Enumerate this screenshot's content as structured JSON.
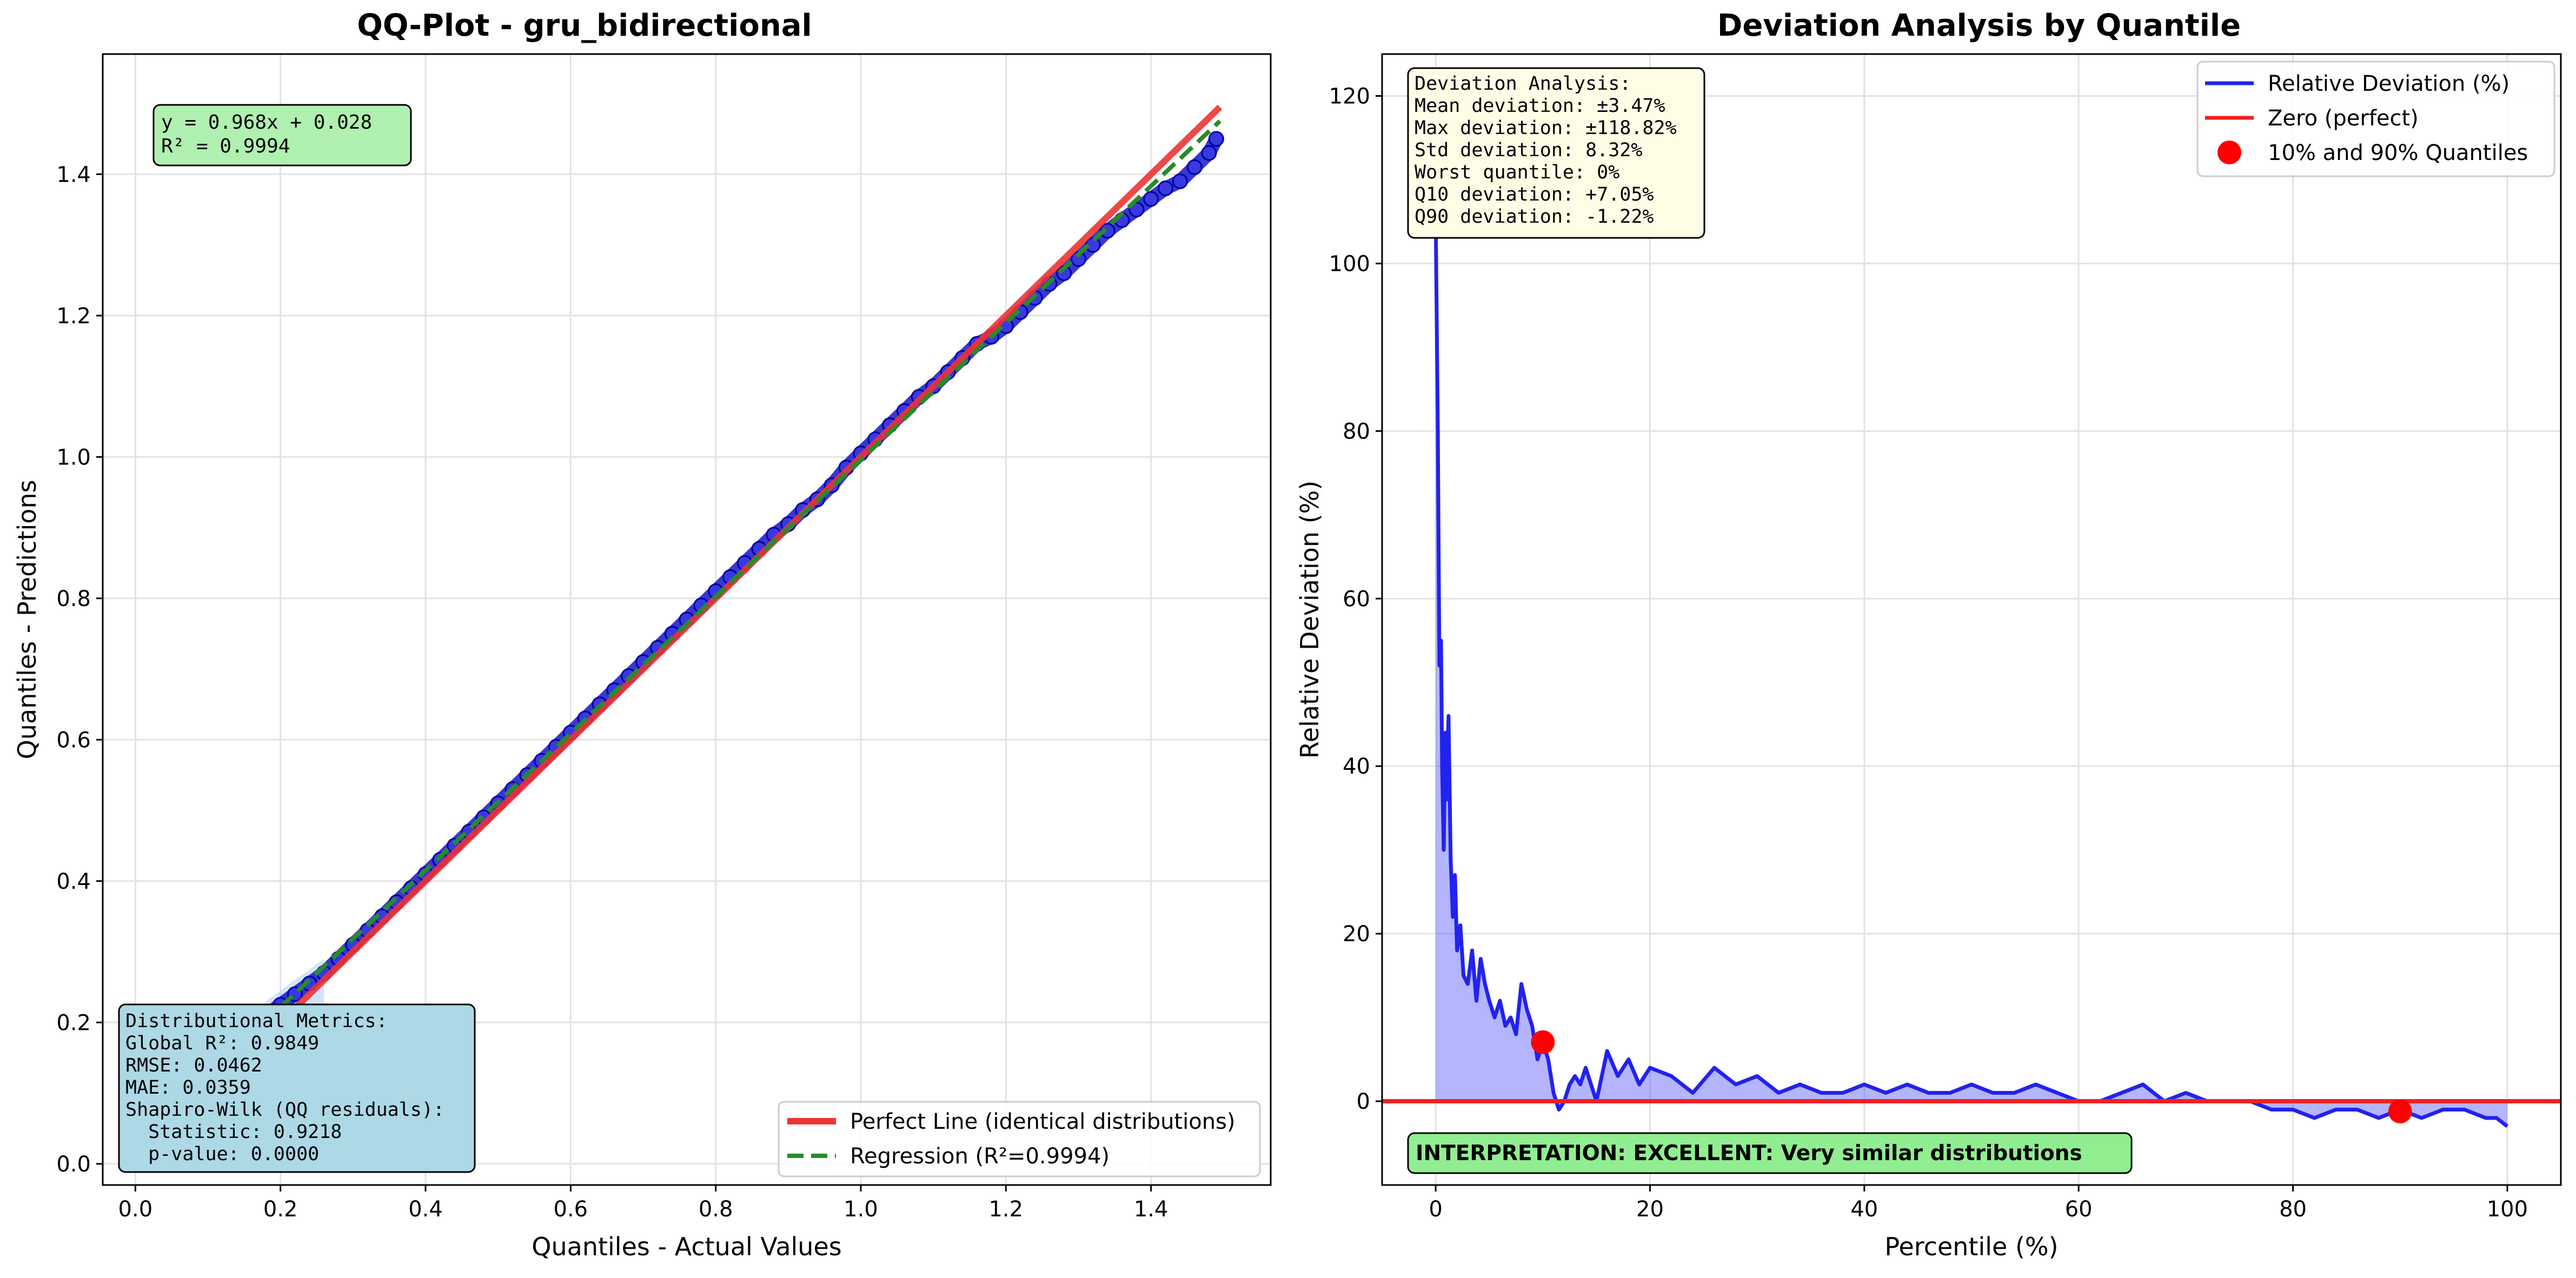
{
  "chart_data": [
    {
      "type": "scatter",
      "title": "QQ-Plot - gru_bidirectional",
      "xlabel": "Quantiles - Actual Values",
      "ylabel": "Quantiles - Predictions",
      "xlim": [
        -0.045,
        1.565
      ],
      "ylim": [
        -0.03,
        1.57
      ],
      "xticks": [
        0.0,
        0.2,
        0.4,
        0.6,
        0.8,
        1.0,
        1.2,
        1.4
      ],
      "yticks": [
        0.0,
        0.2,
        0.4,
        0.6,
        0.8,
        1.0,
        1.2,
        1.4
      ],
      "grid": true,
      "legend_position": "lower-right",
      "series": [
        {
          "name": "QQ quantiles",
          "kind": "scatter",
          "color": "#0000dd",
          "x": [
            0.18,
            0.2,
            0.22,
            0.24,
            0.26,
            0.28,
            0.3,
            0.32,
            0.34,
            0.36,
            0.38,
            0.4,
            0.42,
            0.44,
            0.46,
            0.48,
            0.5,
            0.52,
            0.54,
            0.56,
            0.58,
            0.6,
            0.62,
            0.64,
            0.66,
            0.68,
            0.7,
            0.72,
            0.74,
            0.76,
            0.78,
            0.8,
            0.82,
            0.84,
            0.86,
            0.88,
            0.9,
            0.92,
            0.94,
            0.96,
            0.98,
            1.0,
            1.02,
            1.04,
            1.06,
            1.08,
            1.1,
            1.12,
            1.14,
            1.16,
            1.18,
            1.2,
            1.22,
            1.24,
            1.26,
            1.28,
            1.3,
            1.32,
            1.34,
            1.36,
            1.38,
            1.4,
            1.42,
            1.44,
            1.46,
            1.48,
            1.49
          ],
          "y": [
            0.21,
            0.225,
            0.24,
            0.255,
            0.27,
            0.29,
            0.31,
            0.33,
            0.35,
            0.37,
            0.39,
            0.41,
            0.43,
            0.45,
            0.47,
            0.49,
            0.51,
            0.53,
            0.55,
            0.57,
            0.59,
            0.61,
            0.63,
            0.65,
            0.67,
            0.69,
            0.71,
            0.73,
            0.75,
            0.77,
            0.79,
            0.81,
            0.83,
            0.85,
            0.87,
            0.89,
            0.905,
            0.925,
            0.94,
            0.96,
            0.985,
            1.005,
            1.025,
            1.045,
            1.065,
            1.085,
            1.1,
            1.12,
            1.14,
            1.16,
            1.17,
            1.185,
            1.205,
            1.225,
            1.245,
            1.26,
            1.28,
            1.3,
            1.32,
            1.335,
            1.35,
            1.365,
            1.38,
            1.39,
            1.41,
            1.43,
            1.45
          ]
        },
        {
          "name": "Perfect Line (identical distributions)",
          "kind": "line",
          "color": "#ee3333",
          "x": [
            0.2,
            1.495
          ],
          "y": [
            0.2,
            1.495
          ]
        },
        {
          "name": "Regression (R²=0.9994)",
          "kind": "dashed-line",
          "color": "#2a8a2a",
          "x": [
            0.2,
            1.495
          ],
          "y": [
            0.2216,
            1.4752
          ]
        }
      ],
      "annotations": {
        "equation_box": [
          "y = 0.968x + 0.028",
          "R² = 0.9994"
        ],
        "metrics_box": [
          "Distributional Metrics:",
          "Global R²: 0.9849",
          "RMSE: 0.0462",
          "MAE: 0.0359",
          "Shapiro-Wilk (QQ residuals):",
          "  Statistic: 0.9218",
          "  p-value: 0.0000"
        ]
      },
      "legend": [
        "Perfect Line (identical distributions)",
        "Regression (R²=0.9994)"
      ]
    },
    {
      "type": "line",
      "title": "Deviation Analysis by Quantile",
      "xlabel": "Percentile (%)",
      "ylabel": "Relative Deviation (%)",
      "xlim": [
        -5,
        105
      ],
      "ylim": [
        -10,
        125
      ],
      "xticks": [
        0,
        20,
        40,
        60,
        80,
        100
      ],
      "yticks": [
        0,
        20,
        40,
        60,
        80,
        100,
        120
      ],
      "grid": true,
      "legend_position": "upper-right",
      "series": [
        {
          "name": "Relative Deviation (%)",
          "kind": "area-line",
          "color": "#2222ee",
          "x": [
            0,
            0.2,
            0.35,
            0.5,
            0.6,
            0.75,
            0.9,
            1.0,
            1.2,
            1.4,
            1.6,
            1.8,
            2.0,
            2.3,
            2.6,
            3.0,
            3.4,
            3.8,
            4.2,
            4.6,
            5.0,
            5.5,
            6.0,
            6.5,
            7.0,
            7.5,
            8.0,
            8.5,
            9.0,
            9.5,
            10.0,
            10.5,
            11.0,
            11.5,
            12.0,
            12.5,
            13.0,
            13.5,
            14.0,
            15.0,
            16.0,
            17.0,
            18.0,
            19.0,
            20.0,
            22.0,
            24.0,
            26.0,
            28.0,
            30.0,
            32.0,
            34.0,
            36.0,
            38.0,
            40.0,
            42.0,
            44.0,
            46.0,
            48.0,
            50.0,
            52.0,
            54.0,
            56.0,
            58.0,
            60.0,
            62.0,
            64.0,
            66.0,
            68.0,
            70.0,
            72.0,
            74.0,
            76.0,
            78.0,
            80.0,
            82.0,
            84.0,
            86.0,
            88.0,
            90.0,
            92.0,
            94.0,
            96.0,
            98.0,
            99.0,
            100.0
          ],
          "y": [
            106,
            80,
            52,
            55,
            40,
            30,
            44,
            36,
            46,
            29,
            22,
            27,
            18,
            21,
            15,
            14,
            18,
            12,
            17,
            14,
            12,
            10,
            12,
            9,
            10,
            8,
            14,
            11,
            9,
            5,
            7,
            5,
            1,
            -1,
            0,
            2,
            3,
            2,
            4,
            0,
            6,
            3,
            5,
            2,
            4,
            3,
            1,
            4,
            2,
            3,
            1,
            2,
            1,
            1,
            2,
            1,
            2,
            1,
            1,
            2,
            1,
            1,
            2,
            1,
            0,
            0,
            1,
            2,
            0,
            1,
            0,
            0,
            0,
            -1,
            -1,
            -2,
            -1,
            -1,
            -2,
            -1,
            -2,
            -1,
            -1,
            -2,
            -2,
            -3
          ]
        },
        {
          "name": "Zero (perfect)",
          "kind": "line",
          "color": "#ee2222",
          "x": [
            -5,
            105
          ],
          "y": [
            0,
            0
          ]
        },
        {
          "name": "10% and 90% Quantiles",
          "kind": "scatter",
          "color": "#ff0000",
          "x": [
            10,
            90
          ],
          "y": [
            7.05,
            -1.22
          ]
        }
      ],
      "annotations": {
        "deviation_box": [
          "Deviation Analysis:",
          "Mean deviation: ±3.47%",
          "Max deviation: ±118.82%",
          "Std deviation: 8.32%",
          "Worst quantile: 0%",
          "Q10 deviation: +7.05%",
          "Q90 deviation: -1.22%"
        ],
        "interpretation": "INTERPRETATION: EXCELLENT: Very similar distributions"
      },
      "legend": [
        "Relative Deviation (%)",
        "Zero (perfect)",
        "10% and 90% Quantiles"
      ]
    }
  ]
}
